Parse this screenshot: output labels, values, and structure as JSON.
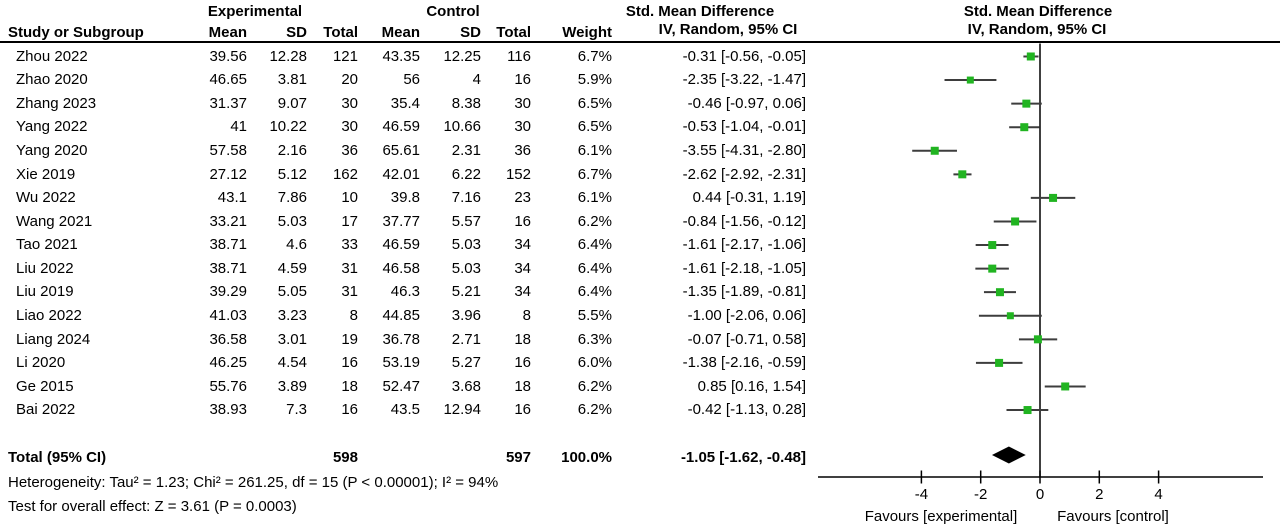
{
  "chart_data": {
    "type": "forest",
    "title_columns": {
      "study": "Study or Subgroup",
      "experimental": "Experimental",
      "control": "Control",
      "mean": "Mean",
      "sd": "SD",
      "total": "Total",
      "weight": "Weight",
      "smd": "Std. Mean Difference",
      "method": "IV, Random, 95% CI"
    },
    "studies": [
      {
        "name": "Zhou 2022",
        "exp_mean": "39.56",
        "exp_sd": "12.28",
        "exp_total": "121",
        "ctl_mean": "43.35",
        "ctl_sd": "12.25",
        "ctl_total": "116",
        "weight": "6.7%",
        "smd_text": "-0.31 [-0.56, -0.05]",
        "est": -0.31,
        "lo": -0.56,
        "hi": -0.05
      },
      {
        "name": "Zhao 2020",
        "exp_mean": "46.65",
        "exp_sd": "3.81",
        "exp_total": "20",
        "ctl_mean": "56",
        "ctl_sd": "4",
        "ctl_total": "16",
        "weight": "5.9%",
        "smd_text": "-2.35 [-3.22, -1.47]",
        "est": -2.35,
        "lo": -3.22,
        "hi": -1.47
      },
      {
        "name": "Zhang 2023",
        "exp_mean": "31.37",
        "exp_sd": "9.07",
        "exp_total": "30",
        "ctl_mean": "35.4",
        "ctl_sd": "8.38",
        "ctl_total": "30",
        "weight": "6.5%",
        "smd_text": "-0.46 [-0.97, 0.06]",
        "est": -0.46,
        "lo": -0.97,
        "hi": 0.06
      },
      {
        "name": "Yang 2022",
        "exp_mean": "41",
        "exp_sd": "10.22",
        "exp_total": "30",
        "ctl_mean": "46.59",
        "ctl_sd": "10.66",
        "ctl_total": "30",
        "weight": "6.5%",
        "smd_text": "-0.53 [-1.04, -0.01]",
        "est": -0.53,
        "lo": -1.04,
        "hi": -0.01
      },
      {
        "name": "Yang 2020",
        "exp_mean": "57.58",
        "exp_sd": "2.16",
        "exp_total": "36",
        "ctl_mean": "65.61",
        "ctl_sd": "2.31",
        "ctl_total": "36",
        "weight": "6.1%",
        "smd_text": "-3.55 [-4.31, -2.80]",
        "est": -3.55,
        "lo": -4.31,
        "hi": -2.8
      },
      {
        "name": "Xie 2019",
        "exp_mean": "27.12",
        "exp_sd": "5.12",
        "exp_total": "162",
        "ctl_mean": "42.01",
        "ctl_sd": "6.22",
        "ctl_total": "152",
        "weight": "6.7%",
        "smd_text": "-2.62 [-2.92, -2.31]",
        "est": -2.62,
        "lo": -2.92,
        "hi": -2.31
      },
      {
        "name": "Wu 2022",
        "exp_mean": "43.1",
        "exp_sd": "7.86",
        "exp_total": "10",
        "ctl_mean": "39.8",
        "ctl_sd": "7.16",
        "ctl_total": "23",
        "weight": "6.1%",
        "smd_text": "0.44 [-0.31, 1.19]",
        "est": 0.44,
        "lo": -0.31,
        "hi": 1.19
      },
      {
        "name": "Wang 2021",
        "exp_mean": "33.21",
        "exp_sd": "5.03",
        "exp_total": "17",
        "ctl_mean": "37.77",
        "ctl_sd": "5.57",
        "ctl_total": "16",
        "weight": "6.2%",
        "smd_text": "-0.84 [-1.56, -0.12]",
        "est": -0.84,
        "lo": -1.56,
        "hi": -0.12
      },
      {
        "name": "Tao 2021",
        "exp_mean": "38.71",
        "exp_sd": "4.6",
        "exp_total": "33",
        "ctl_mean": "46.59",
        "ctl_sd": "5.03",
        "ctl_total": "34",
        "weight": "6.4%",
        "smd_text": "-1.61 [-2.17, -1.06]",
        "est": -1.61,
        "lo": -2.17,
        "hi": -1.06
      },
      {
        "name": "Liu 2022",
        "exp_mean": "38.71",
        "exp_sd": "4.59",
        "exp_total": "31",
        "ctl_mean": "46.58",
        "ctl_sd": "5.03",
        "ctl_total": "34",
        "weight": "6.4%",
        "smd_text": "-1.61 [-2.18, -1.05]",
        "est": -1.61,
        "lo": -2.18,
        "hi": -1.05
      },
      {
        "name": "Liu 2019",
        "exp_mean": "39.29",
        "exp_sd": "5.05",
        "exp_total": "31",
        "ctl_mean": "46.3",
        "ctl_sd": "5.21",
        "ctl_total": "34",
        "weight": "6.4%",
        "smd_text": "-1.35 [-1.89, -0.81]",
        "est": -1.35,
        "lo": -1.89,
        "hi": -0.81
      },
      {
        "name": "Liao 2022",
        "exp_mean": "41.03",
        "exp_sd": "3.23",
        "exp_total": "8",
        "ctl_mean": "44.85",
        "ctl_sd": "3.96",
        "ctl_total": "8",
        "weight": "5.5%",
        "smd_text": "-1.00 [-2.06, 0.06]",
        "est": -1.0,
        "lo": -2.06,
        "hi": 0.06
      },
      {
        "name": "Liang 2024",
        "exp_mean": "36.58",
        "exp_sd": "3.01",
        "exp_total": "19",
        "ctl_mean": "36.78",
        "ctl_sd": "2.71",
        "ctl_total": "18",
        "weight": "6.3%",
        "smd_text": "-0.07 [-0.71, 0.58]",
        "est": -0.07,
        "lo": -0.71,
        "hi": 0.58
      },
      {
        "name": "Li 2020",
        "exp_mean": "46.25",
        "exp_sd": "4.54",
        "exp_total": "16",
        "ctl_mean": "53.19",
        "ctl_sd": "5.27",
        "ctl_total": "16",
        "weight": "6.0%",
        "smd_text": "-1.38 [-2.16, -0.59]",
        "est": -1.38,
        "lo": -2.16,
        "hi": -0.59
      },
      {
        "name": "Ge 2015",
        "exp_mean": "55.76",
        "exp_sd": "3.89",
        "exp_total": "18",
        "ctl_mean": "52.47",
        "ctl_sd": "3.68",
        "ctl_total": "18",
        "weight": "6.2%",
        "smd_text": "0.85 [0.16, 1.54]",
        "est": 0.85,
        "lo": 0.16,
        "hi": 1.54
      },
      {
        "name": "Bai 2022",
        "exp_mean": "38.93",
        "exp_sd": "7.3",
        "exp_total": "16",
        "ctl_mean": "43.5",
        "ctl_sd": "12.94",
        "ctl_total": "16",
        "weight": "6.2%",
        "smd_text": "-0.42 [-1.13, 0.28]",
        "est": -0.42,
        "lo": -1.13,
        "hi": 0.28
      }
    ],
    "total": {
      "label": "Total (95% CI)",
      "exp_total": "598",
      "ctl_total": "597",
      "weight": "100.0%",
      "smd_text": "-1.05 [-1.62, -0.48]",
      "est": -1.05,
      "lo": -1.62,
      "hi": -0.48
    },
    "heterogeneity": "Heterogeneity: Tau² = 1.23; Chi² = 261.25, df = 15 (P < 0.00001); I² = 94%",
    "overall_effect": "Test for overall effect: Z = 3.61 (P = 0.0003)",
    "axis": {
      "ticks": [
        "-4",
        "-2",
        "0",
        "2",
        "4"
      ],
      "tick_values": [
        -4,
        -2,
        0,
        2,
        4
      ],
      "xlim": [
        -7.5,
        7.5
      ]
    },
    "favours": {
      "left": "Favours [experimental]",
      "right": "Favours [control]"
    },
    "colors": {
      "marker_green": "#21b421",
      "ci_line": "#3d3d3d",
      "diamond": "#000000",
      "axis": "#000000"
    }
  }
}
